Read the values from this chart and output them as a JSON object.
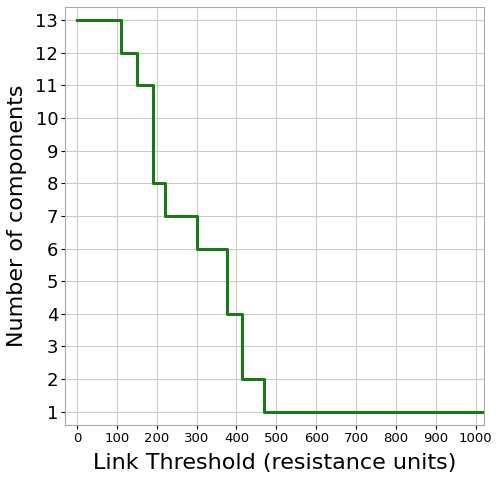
{
  "title": "",
  "xlabel": "Link Threshold (resistance units)",
  "ylabel": "Number of components",
  "line_color": "#1a7a1a",
  "line_width": 2.2,
  "background_color": "#ffffff",
  "grid_color": "#cccccc",
  "grid_linewidth": 0.8,
  "xlim": [
    -30,
    1020
  ],
  "ylim": [
    0.6,
    13.4
  ],
  "xticks": [
    0,
    100,
    200,
    300,
    400,
    500,
    600,
    700,
    800,
    900,
    1000
  ],
  "yticks": [
    1,
    2,
    3,
    4,
    5,
    6,
    7,
    8,
    9,
    10,
    11,
    12,
    13
  ],
  "tick_labelsize": 13,
  "xlabel_fontsize": 16,
  "ylabel_fontsize": 16,
  "step_x": [
    0,
    60,
    110,
    150,
    190,
    220,
    255,
    300,
    340,
    375,
    415,
    445,
    468,
    500,
    1020
  ],
  "step_y": [
    13,
    13,
    12,
    11,
    8,
    7,
    7,
    6,
    6,
    4,
    2,
    2,
    1,
    1,
    1
  ]
}
